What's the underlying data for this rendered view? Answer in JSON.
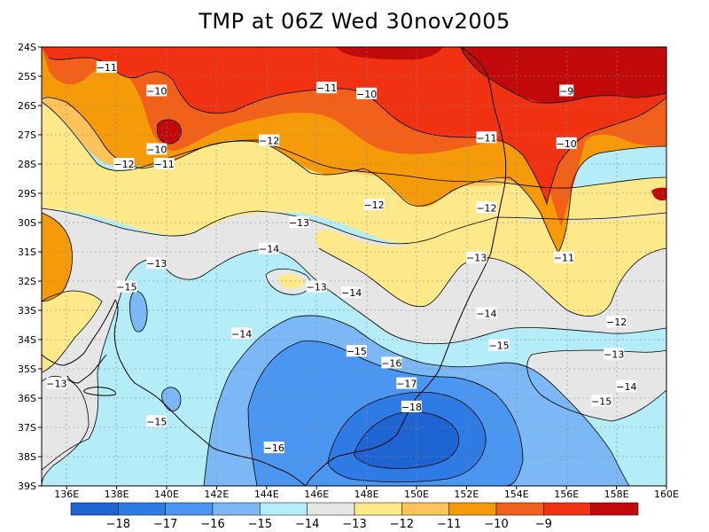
{
  "title": "TMP at 06Z Wed 30nov2005",
  "lat_ticks": [
    "24S",
    "25S",
    "26S",
    "27S",
    "28S",
    "29S",
    "30S",
    "31S",
    "32S",
    "33S",
    "34S",
    "35S",
    "36S",
    "37S",
    "38S",
    "39S"
  ],
  "lon_ticks": [
    "136E",
    "138E",
    "140E",
    "142E",
    "144E",
    "146E",
    "148E",
    "150E",
    "152E",
    "154E",
    "156E",
    "158E",
    "160E"
  ],
  "colors": {
    "c_m18": "#1e64d2",
    "c_m17": "#2f7be6",
    "c_m16": "#4a96f0",
    "c_m15": "#7cb8f5",
    "c_m14": "#b4ecf8",
    "c_m13": "#e6e6e6",
    "c_m12": "#fde98a",
    "c_m11": "#fbc35a",
    "c_m10": "#f59b0a",
    "c_m9": "#f26119",
    "c_m8": "#f03212",
    "c_m7": "#c20a0a"
  },
  "colorbar": {
    "colors": [
      "#1e64d2",
      "#2f7be6",
      "#4a96f0",
      "#7cb8f5",
      "#b4ecf8",
      "#e6e6e6",
      "#fde98a",
      "#fbc35a",
      "#f59b0a",
      "#f26119",
      "#f03212",
      "#c20a0a"
    ],
    "labels": [
      "-18",
      "-17",
      "-16",
      "-15",
      "-14",
      "-13",
      "-12",
      "-11",
      "-10",
      "-9"
    ]
  },
  "contour_labels": [
    {
      "text": "-11",
      "lon": 137.6,
      "lat": -24.7
    },
    {
      "text": "-10",
      "lon": 139.6,
      "lat": -25.5
    },
    {
      "text": "-11",
      "lon": 146.4,
      "lat": -25.4
    },
    {
      "text": "-10",
      "lon": 148.0,
      "lat": -25.6
    },
    {
      "text": "-9",
      "lon": 156.0,
      "lat": -25.5
    },
    {
      "text": "-12",
      "lon": 144.1,
      "lat": -27.2
    },
    {
      "text": "-11",
      "lon": 152.8,
      "lat": -27.1
    },
    {
      "text": "-10",
      "lon": 156.0,
      "lat": -27.3
    },
    {
      "text": "-10",
      "lon": 139.6,
      "lat": -27.5
    },
    {
      "text": "-12",
      "lon": 138.3,
      "lat": -28.0
    },
    {
      "text": "-11",
      "lon": 139.9,
      "lat": -28.0
    },
    {
      "text": "-12",
      "lon": 148.3,
      "lat": -29.4
    },
    {
      "text": "-13",
      "lon": 145.3,
      "lat": -30.0
    },
    {
      "text": "-12",
      "lon": 152.8,
      "lat": -29.5
    },
    {
      "text": "-14",
      "lon": 144.1,
      "lat": -30.9
    },
    {
      "text": "-13",
      "lon": 139.6,
      "lat": -31.4
    },
    {
      "text": "-13",
      "lon": 152.4,
      "lat": -31.2
    },
    {
      "text": "-11",
      "lon": 155.9,
      "lat": -31.2
    },
    {
      "text": "-15",
      "lon": 138.4,
      "lat": -32.2
    },
    {
      "text": "-13",
      "lon": 146.0,
      "lat": -32.2
    },
    {
      "text": "-14",
      "lon": 147.4,
      "lat": -32.4
    },
    {
      "text": "-14",
      "lon": 152.8,
      "lat": -33.1
    },
    {
      "text": "-12",
      "lon": 158.0,
      "lat": -33.4
    },
    {
      "text": "-14",
      "lon": 143.0,
      "lat": -33.8
    },
    {
      "text": "-15",
      "lon": 153.3,
      "lat": -34.2
    },
    {
      "text": "-15",
      "lon": 147.6,
      "lat": -34.4
    },
    {
      "text": "-13",
      "lon": 157.9,
      "lat": -34.5
    },
    {
      "text": "-16",
      "lon": 149.0,
      "lat": -34.8
    },
    {
      "text": "-13",
      "lon": 135.6,
      "lat": -35.5
    },
    {
      "text": "-17",
      "lon": 149.6,
      "lat": -35.5
    },
    {
      "text": "-14",
      "lon": 158.4,
      "lat": -35.6
    },
    {
      "text": "-15",
      "lon": 157.4,
      "lat": -36.1
    },
    {
      "text": "-18",
      "lon": 149.8,
      "lat": -36.3
    },
    {
      "text": "-15",
      "lon": 139.6,
      "lat": -36.8
    },
    {
      "text": "-16",
      "lon": 144.3,
      "lat": -37.7
    }
  ]
}
